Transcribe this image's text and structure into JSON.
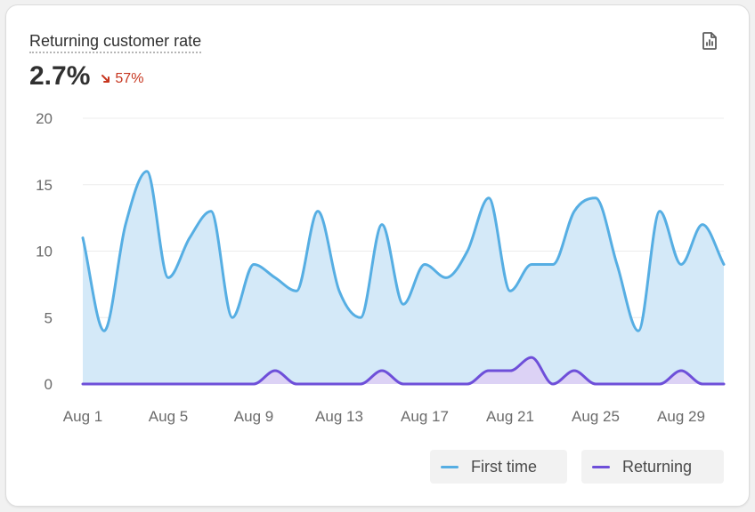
{
  "card": {
    "title": "Returning customer rate",
    "metric_value": "2.7%",
    "delta_text": "57%",
    "delta_direction": "down",
    "export_icon": "report-icon"
  },
  "colors": {
    "first_time": "#56aee3",
    "first_time_fill": "#d4e9f8",
    "returning": "#6e4fd9",
    "returning_fill": "#dcd2f5",
    "delta": "#c7361f",
    "grid": "#ececec",
    "tick": "#6b6b6b"
  },
  "legend": {
    "first_time_label": "First time",
    "returning_label": "Returning"
  },
  "chart_data": {
    "type": "area",
    "title": "Returning customer rate",
    "xlabel": "",
    "ylabel": "",
    "ylim": [
      0,
      20
    ],
    "yticks": [
      0,
      5,
      10,
      15,
      20
    ],
    "x": [
      "Aug 1",
      "Aug 2",
      "Aug 3",
      "Aug 4",
      "Aug 5",
      "Aug 6",
      "Aug 7",
      "Aug 8",
      "Aug 9",
      "Aug 10",
      "Aug 11",
      "Aug 12",
      "Aug 13",
      "Aug 14",
      "Aug 15",
      "Aug 16",
      "Aug 17",
      "Aug 18",
      "Aug 19",
      "Aug 20",
      "Aug 21",
      "Aug 22",
      "Aug 23",
      "Aug 24",
      "Aug 25",
      "Aug 26",
      "Aug 27",
      "Aug 28",
      "Aug 29",
      "Aug 30",
      "Aug 31"
    ],
    "xticks": [
      "Aug 1",
      "Aug 5",
      "Aug 9",
      "Aug 13",
      "Aug 17",
      "Aug 21",
      "Aug 25",
      "Aug 29"
    ],
    "grid": true,
    "legend_position": "bottom-right",
    "series": [
      {
        "name": "First time",
        "values": [
          11,
          4,
          12,
          16,
          8,
          11,
          13,
          5,
          9,
          8,
          7,
          13,
          7,
          5,
          12,
          6,
          9,
          8,
          10,
          14,
          7,
          9,
          9,
          13,
          14,
          9,
          4,
          13,
          9,
          12,
          9
        ]
      },
      {
        "name": "Returning",
        "values": [
          0,
          0,
          0,
          0,
          0,
          0,
          0,
          0,
          0,
          1,
          0,
          0,
          0,
          0,
          1,
          0,
          0,
          0,
          0,
          1,
          1,
          2,
          0,
          1,
          0,
          0,
          0,
          0,
          1,
          0,
          0
        ]
      }
    ]
  }
}
